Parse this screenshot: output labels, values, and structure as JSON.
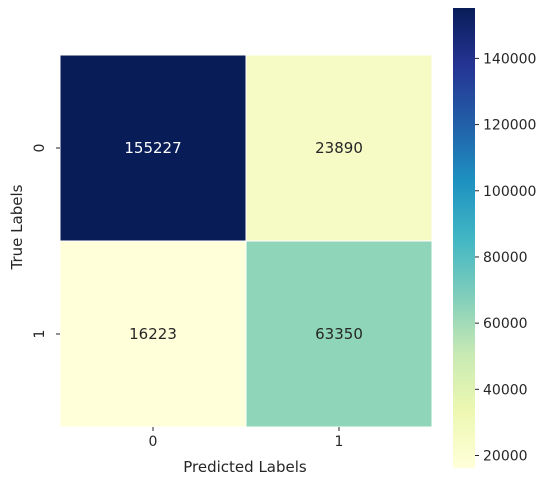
{
  "chart_data": {
    "type": "heatmap",
    "title": "",
    "xlabel": "Predicted Labels",
    "ylabel": "True Labels",
    "x_categories": [
      "0",
      "1"
    ],
    "y_categories": [
      "0",
      "1"
    ],
    "values": [
      [
        155227,
        23890
      ],
      [
        16223,
        63350
      ]
    ],
    "annotations": [
      [
        "155227",
        "23890"
      ],
      [
        "16223",
        "63350"
      ]
    ],
    "colormap": "YlGnBu",
    "colorbar": {
      "range": [
        16223,
        155227
      ],
      "ticks": [
        20000,
        40000,
        60000,
        80000,
        100000,
        120000,
        140000
      ],
      "tick_labels": [
        "20000",
        "40000",
        "60000",
        "80000",
        "100000",
        "120000",
        "140000"
      ]
    },
    "colors": {
      "cell_00": "#081d58",
      "cell_01": "#f6fbc5",
      "cell_10": "#ffffd9",
      "cell_11": "#8fd5b9"
    },
    "grid": false
  }
}
